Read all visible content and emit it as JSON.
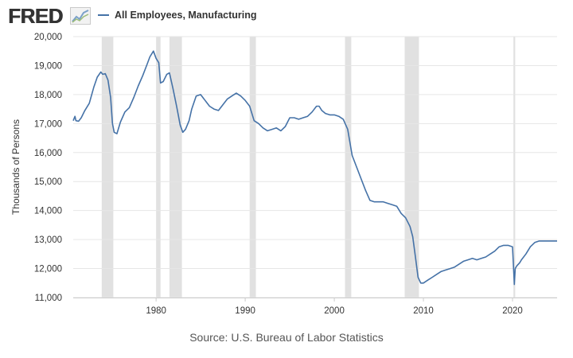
{
  "brand": {
    "logo_text": "FRED"
  },
  "colors": {
    "series": "#4572a7",
    "recession": "#e1e1e1",
    "grid": "#e6e6e6",
    "text": "#333333"
  },
  "footer": {
    "source": "Source: U.S. Bureau of Labor Statistics"
  },
  "chart_data": {
    "type": "line",
    "title": "All Employees, Manufacturing",
    "xlabel": "",
    "ylabel": "Thousands of Persons",
    "xlim": [
      1970.7,
      2025.0
    ],
    "ylim": [
      11000,
      20000
    ],
    "yticks": [
      11000,
      12000,
      13000,
      14000,
      15000,
      16000,
      17000,
      18000,
      19000,
      20000
    ],
    "ytick_labels": [
      "11,000",
      "12,000",
      "13,000",
      "14,000",
      "15,000",
      "16,000",
      "17,000",
      "18,000",
      "19,000",
      "20,000"
    ],
    "xticks": [
      1980,
      1990,
      2000,
      2010,
      2020
    ],
    "xtick_labels": [
      "1980",
      "1990",
      "2000",
      "2010",
      "2020"
    ],
    "grid": true,
    "recessions": [
      {
        "start": 1973.9,
        "end": 1975.2
      },
      {
        "start": 1980.0,
        "end": 1980.5
      },
      {
        "start": 1981.5,
        "end": 1982.9
      },
      {
        "start": 1990.5,
        "end": 1991.2
      },
      {
        "start": 2001.2,
        "end": 2001.9
      },
      {
        "start": 2007.9,
        "end": 2009.5
      },
      {
        "start": 2020.1,
        "end": 2020.3
      }
    ],
    "series": [
      {
        "name": "All Employees, Manufacturing",
        "x": [
          1970.7,
          1970.9,
          1971.0,
          1971.3,
          1971.6,
          1972.0,
          1972.5,
          1973.0,
          1973.4,
          1973.8,
          1974.0,
          1974.3,
          1974.6,
          1974.9,
          1975.1,
          1975.3,
          1975.6,
          1976.0,
          1976.5,
          1977.0,
          1977.5,
          1978.0,
          1978.5,
          1979.0,
          1979.3,
          1979.5,
          1979.7,
          1980.0,
          1980.3,
          1980.5,
          1980.8,
          1981.2,
          1981.5,
          1981.9,
          1982.3,
          1982.7,
          1983.0,
          1983.3,
          1983.7,
          1984.0,
          1984.5,
          1985.0,
          1985.5,
          1986.0,
          1986.5,
          1987.0,
          1987.5,
          1988.0,
          1988.5,
          1989.0,
          1989.5,
          1990.0,
          1990.5,
          1991.0,
          1991.5,
          1992.0,
          1992.5,
          1993.0,
          1993.5,
          1994.0,
          1994.5,
          1995.0,
          1995.5,
          1996.0,
          1996.5,
          1997.0,
          1997.5,
          1998.0,
          1998.3,
          1998.6,
          1999.0,
          1999.5,
          2000.0,
          2000.5,
          2001.0,
          2001.5,
          2002.0,
          2002.5,
          2003.0,
          2003.5,
          2004.0,
          2004.5,
          2005.0,
          2005.5,
          2006.0,
          2006.5,
          2007.0,
          2007.5,
          2008.0,
          2008.5,
          2008.8,
          2009.1,
          2009.4,
          2009.7,
          2010.0,
          2010.5,
          2011.0,
          2011.5,
          2012.0,
          2012.5,
          2013.0,
          2013.5,
          2014.0,
          2014.5,
          2015.0,
          2015.5,
          2016.0,
          2016.5,
          2017.0,
          2017.5,
          2018.0,
          2018.5,
          2019.0,
          2019.5,
          2020.0,
          2020.2,
          2020.3,
          2020.5,
          2020.8,
          2021.0,
          2021.5,
          2022.0,
          2022.5,
          2023.0,
          2023.5,
          2024.0,
          2024.5,
          2025.0
        ],
        "values": [
          17100,
          17250,
          17100,
          17080,
          17200,
          17450,
          17700,
          18250,
          18600,
          18780,
          18700,
          18720,
          18500,
          17900,
          17000,
          16700,
          16650,
          17050,
          17400,
          17550,
          17900,
          18300,
          18650,
          19050,
          19300,
          19400,
          19500,
          19250,
          19100,
          18400,
          18450,
          18700,
          18750,
          18200,
          17600,
          16950,
          16700,
          16800,
          17100,
          17500,
          17950,
          18000,
          17800,
          17600,
          17500,
          17450,
          17650,
          17850,
          17950,
          18050,
          17950,
          17800,
          17600,
          17100,
          17000,
          16850,
          16750,
          16800,
          16850,
          16750,
          16900,
          17200,
          17200,
          17150,
          17200,
          17250,
          17400,
          17600,
          17600,
          17450,
          17350,
          17300,
          17300,
          17250,
          17150,
          16800,
          15900,
          15500,
          15100,
          14700,
          14350,
          14300,
          14300,
          14300,
          14250,
          14200,
          14150,
          13900,
          13750,
          13450,
          13100,
          12400,
          11700,
          11500,
          11500,
          11600,
          11700,
          11800,
          11900,
          11950,
          12000,
          12050,
          12150,
          12250,
          12300,
          12350,
          12300,
          12350,
          12400,
          12500,
          12600,
          12750,
          12800,
          12800,
          12750,
          11450,
          12000,
          12100,
          12200,
          12300,
          12500,
          12750,
          12900,
          12950,
          12950,
          12950,
          12950,
          12950
        ]
      }
    ]
  }
}
